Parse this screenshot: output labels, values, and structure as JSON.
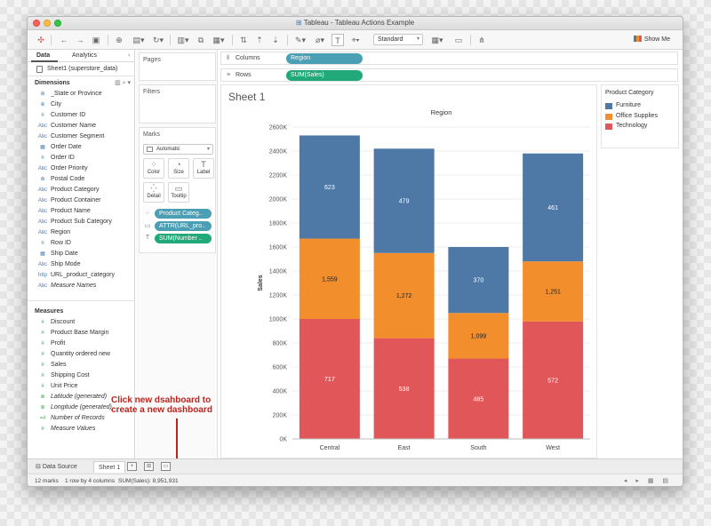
{
  "window": {
    "title": "Tableau - Tableau Actions Example"
  },
  "toolbar": {
    "view_size": "Standard",
    "show_me_label": "Show Me"
  },
  "data_pane": {
    "tabs": [
      "Data",
      "Analytics"
    ],
    "data_source": "Sheet1 (superstore_data)",
    "dimensions_header": "Dimensions",
    "dimensions": [
      {
        "icon": "globe",
        "label": "_State or Province"
      },
      {
        "icon": "globe",
        "label": "City"
      },
      {
        "icon": "#",
        "label": "Customer ID"
      },
      {
        "icon": "Abc",
        "label": "Customer Name"
      },
      {
        "icon": "Abc",
        "label": "Customer Segment"
      },
      {
        "icon": "date",
        "label": "Order Date"
      },
      {
        "icon": "#",
        "label": "Order ID"
      },
      {
        "icon": "Abc",
        "label": "Order Priority"
      },
      {
        "icon": "globe",
        "label": "Postal Code"
      },
      {
        "icon": "Abc",
        "label": "Product Category"
      },
      {
        "icon": "Abc",
        "label": "Product Container"
      },
      {
        "icon": "Abc",
        "label": "Product Name"
      },
      {
        "icon": "Abc",
        "label": "Product Sub Category"
      },
      {
        "icon": "Abc",
        "label": "Region"
      },
      {
        "icon": "#",
        "label": "Row ID"
      },
      {
        "icon": "date",
        "label": "Ship Date"
      },
      {
        "icon": "Abc",
        "label": "Ship Mode"
      },
      {
        "icon": "http",
        "label": "URL_product_category"
      },
      {
        "icon": "Abc",
        "label": "Measure Names",
        "italic": true
      }
    ],
    "measures_header": "Measures",
    "measures": [
      {
        "icon": "#",
        "label": "Discount"
      },
      {
        "icon": "#",
        "label": "Product Base Margin"
      },
      {
        "icon": "#",
        "label": "Profit"
      },
      {
        "icon": "#",
        "label": "Quantity ordered new"
      },
      {
        "icon": "#",
        "label": "Sales"
      },
      {
        "icon": "#",
        "label": "Shipping Cost"
      },
      {
        "icon": "#",
        "label": "Unit Price"
      },
      {
        "icon": "globe",
        "label": "Latitude (generated)",
        "italic": true
      },
      {
        "icon": "globe",
        "label": "Longitude (generated)",
        "italic": true
      },
      {
        "icon": "=#",
        "label": "Number of Records",
        "italic": true
      },
      {
        "icon": "#",
        "label": "Measure Values",
        "italic": true
      }
    ]
  },
  "cards": {
    "pages_title": "Pages",
    "filters_title": "Filters",
    "marks_title": "Marks",
    "mark_type": "Automatic",
    "mark_buttons": [
      {
        "label": "Color",
        "icon": "⁘"
      },
      {
        "label": "Size",
        "icon": "◔"
      },
      {
        "label": "Label",
        "icon": "T"
      },
      {
        "label": "Detail",
        "icon": "⁛"
      },
      {
        "label": "Tooltip",
        "icon": "▭"
      }
    ],
    "mark_pills": [
      {
        "icon": "⁘",
        "label": "Product Categ..",
        "kind": "dim"
      },
      {
        "icon": "▭",
        "label": "ATTR(URL_pro..",
        "kind": "dim"
      },
      {
        "icon": "T",
        "label": "SUM(Number ..",
        "kind": "meas"
      }
    ]
  },
  "shelves": {
    "columns_label": "Columns",
    "columns_pill": "Region",
    "rows_label": "Rows",
    "rows_pill": "SUM(Sales)"
  },
  "sheet": {
    "title": "Sheet 1"
  },
  "legend": {
    "title": "Product Category",
    "items": [
      {
        "label": "Furniture",
        "color": "#4e79a7"
      },
      {
        "label": "Office Supplies",
        "color": "#f28e2b"
      },
      {
        "label": "Technology",
        "color": "#e15759"
      }
    ]
  },
  "chart_data": {
    "type": "bar",
    "stacked": true,
    "title": "Region",
    "ylabel": "Sales",
    "categories": [
      "Central",
      "East",
      "South",
      "West"
    ],
    "ylim": [
      0,
      2600000
    ],
    "y_ticks": [
      "0K",
      "200K",
      "400K",
      "600K",
      "800K",
      "1000K",
      "1200K",
      "1400K",
      "1600K",
      "1800K",
      "2000K",
      "2200K",
      "2400K",
      "2600K"
    ],
    "series": [
      {
        "name": "Technology",
        "color": "#e15759",
        "values": [
          1000000,
          840000,
          670000,
          980000
        ],
        "labels": [
          "717",
          "538",
          "485",
          "572"
        ]
      },
      {
        "name": "Office Supplies",
        "color": "#f28e2b",
        "values": [
          670000,
          710000,
          380000,
          500000
        ],
        "labels": [
          "1,559",
          "1,272",
          "1,099",
          "1,251"
        ]
      },
      {
        "name": "Furniture",
        "color": "#4e79a7",
        "values": [
          860000,
          870000,
          550000,
          900000
        ],
        "labels": [
          "623",
          "479",
          "370",
          "461"
        ]
      }
    ],
    "grid": true
  },
  "annotation": {
    "line1": "Click new dsahboard to",
    "line2": "create a new dashboard",
    "color": "#b9261f"
  },
  "sheet_tabs": {
    "data_source_tab": "Data Source",
    "active_tab": "Sheet 1"
  },
  "status_bar": {
    "marks": "12 marks",
    "dims": "1 row by 4 columns",
    "sum": "SUM(Sales): 8,951,931"
  }
}
